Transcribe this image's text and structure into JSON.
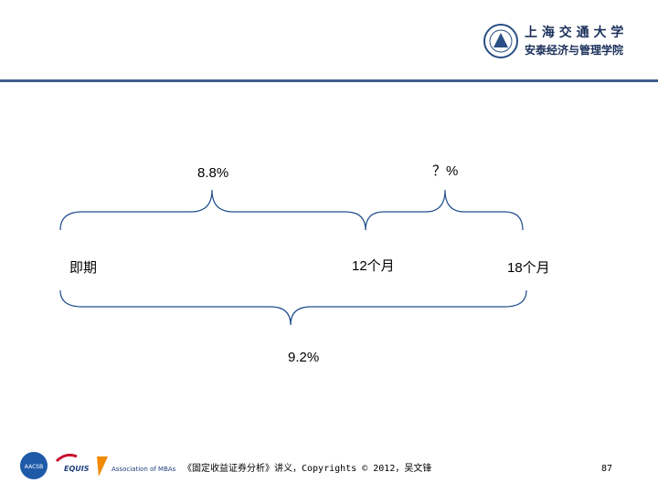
{
  "header": {
    "university": "上 海 交 通 大 学",
    "school": "安泰经济与管理学院"
  },
  "diagram": {
    "rate_0_12": "8.8%",
    "rate_12_18": "？%",
    "rate_0_18": "9.2%",
    "points": [
      "即期",
      "12个月",
      "18个月"
    ]
  },
  "footer": {
    "logos": [
      "AACSB",
      "EQUIS",
      "Association of MBAs"
    ],
    "copyright": "《固定收益证券分析》讲义，Copyrights © 2012，吴文锋",
    "page": "87"
  }
}
